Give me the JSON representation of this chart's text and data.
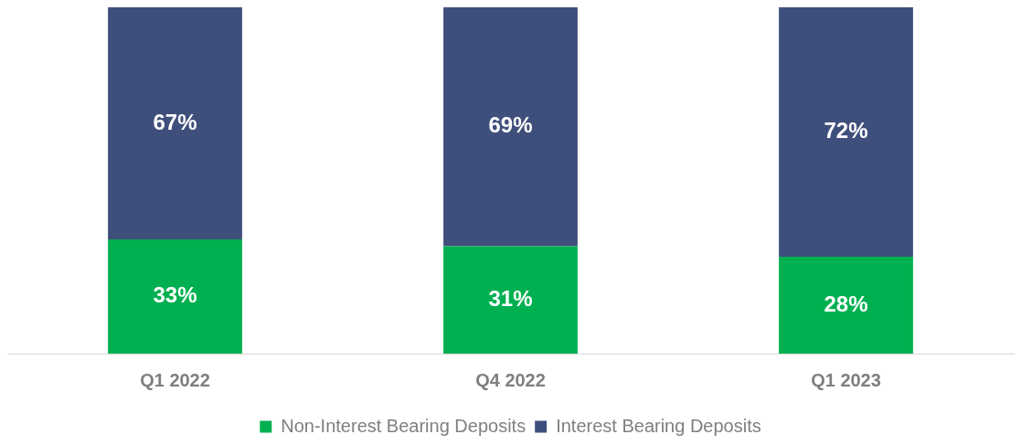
{
  "chart_data": {
    "type": "bar",
    "stacked": true,
    "legend": "bottom",
    "grid": false,
    "tick_labels": "x",
    "categories": [
      "Q1 2022",
      "Q4 2022",
      "Q1 2023"
    ],
    "series": [
      {
        "name": "Non-Interest Bearing Deposits",
        "color": "#00b050",
        "values": [
          33,
          31,
          28
        ],
        "value_labels": [
          "33%",
          "31%",
          "28%"
        ]
      },
      {
        "name": "Interest Bearing Deposits",
        "color": "#3f4f7c",
        "values": [
          67,
          69,
          72
        ],
        "value_labels": [
          "67%",
          "69%",
          "72%"
        ]
      }
    ]
  }
}
